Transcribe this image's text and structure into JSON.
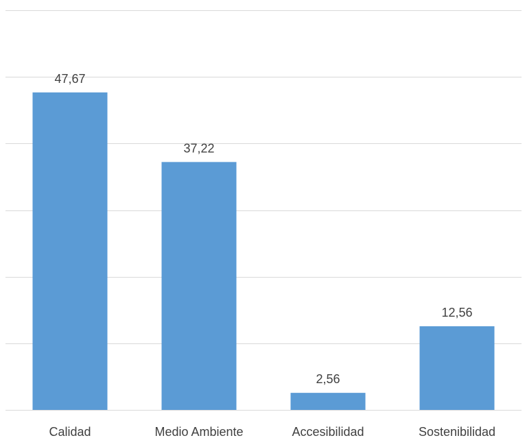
{
  "chart_data": {
    "type": "bar",
    "title": "",
    "xlabel": "",
    "ylabel": "",
    "categories": [
      "Calidad",
      "Medio Ambiente",
      "Accesibilidad",
      "Sostenibilidad"
    ],
    "values": [
      47.67,
      37.22,
      2.56,
      12.56
    ],
    "value_labels": [
      "47,67",
      "37,22",
      "2,56",
      "12,56"
    ],
    "ylim": [
      0,
      60
    ],
    "ytick_step": 10,
    "grid": true,
    "legend": "none",
    "bar_color": "#5b9bd5",
    "grid_color": "#d9d9d9",
    "text_color": "#404040"
  }
}
